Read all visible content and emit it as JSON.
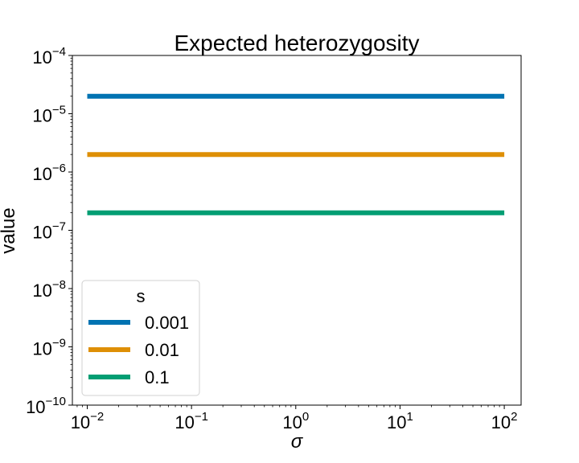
{
  "chart_data": {
    "type": "line",
    "title": "Expected heterozygosity",
    "xlabel": "σ",
    "ylabel": "value",
    "xscale": "log",
    "yscale": "log",
    "xlim": [
      0.0072,
      145.0
    ],
    "ylim": [
      1e-10,
      0.0001
    ],
    "x_ticks": [
      {
        "value": 0.01,
        "base": "10",
        "exp": "−2"
      },
      {
        "value": 0.1,
        "base": "10",
        "exp": "−1"
      },
      {
        "value": 1,
        "base": "10",
        "exp": "0"
      },
      {
        "value": 10,
        "base": "10",
        "exp": "1"
      },
      {
        "value": 100,
        "base": "10",
        "exp": "2"
      }
    ],
    "y_ticks": [
      {
        "value": 1e-10,
        "base": "10",
        "exp": "−10"
      },
      {
        "value": 1e-09,
        "base": "10",
        "exp": "−9"
      },
      {
        "value": 1e-08,
        "base": "10",
        "exp": "−8"
      },
      {
        "value": 1e-07,
        "base": "10",
        "exp": "−7"
      },
      {
        "value": 1e-06,
        "base": "10",
        "exp": "−6"
      },
      {
        "value": 1e-05,
        "base": "10",
        "exp": "−5"
      },
      {
        "value": 0.0001,
        "base": "10",
        "exp": "−4"
      }
    ],
    "grid": false,
    "legend": {
      "title": "s",
      "position": "lower-left"
    },
    "series": [
      {
        "name": "0.001",
        "color": "#0173b2",
        "x": [
          0.01,
          100
        ],
        "y": [
          2e-05,
          2e-05
        ]
      },
      {
        "name": "0.01",
        "color": "#de8f05",
        "x": [
          0.01,
          100
        ],
        "y": [
          2e-06,
          2e-06
        ]
      },
      {
        "name": "0.1",
        "color": "#029e73",
        "x": [
          0.01,
          100
        ],
        "y": [
          2e-07,
          2e-07
        ]
      }
    ]
  }
}
